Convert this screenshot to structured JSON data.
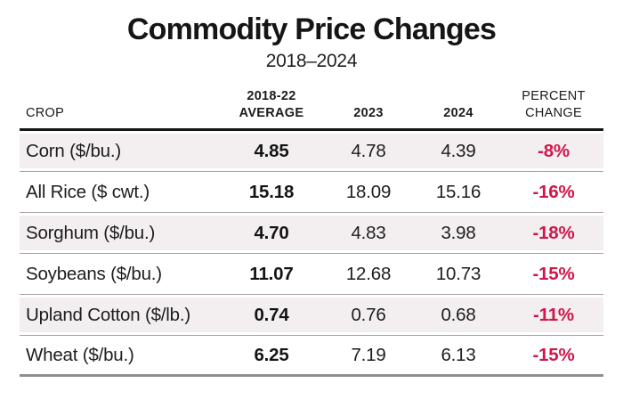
{
  "title": "Commodity Price Changes",
  "subtitle": "2018–2024",
  "colors": {
    "accent_red": "#d0164a",
    "row_tint": "#f3eff0",
    "header_rule": "#161616",
    "separator": "#a8a3a5",
    "bottom_rule": "#8f8f8f"
  },
  "table": {
    "headers": {
      "crop": "CROP",
      "avg_line1": "2018-22",
      "avg_line2": "AVERAGE",
      "y2023": "2023",
      "y2024": "2024",
      "pct_line1": "PERCENT",
      "pct_line2": "CHANGE"
    },
    "rows": [
      {
        "crop": "Corn ($/bu.)",
        "avg": "4.85",
        "y2023": "4.78",
        "y2024": "4.39",
        "pct": "-8%"
      },
      {
        "crop": "All Rice ($ cwt.)",
        "avg": "15.18",
        "y2023": "18.09",
        "y2024": "15.16",
        "pct": "-16%"
      },
      {
        "crop": "Sorghum ($/bu.)",
        "avg": "4.70",
        "y2023": "4.83",
        "y2024": "3.98",
        "pct": "-18%"
      },
      {
        "crop": "Soybeans ($/bu.)",
        "avg": "11.07",
        "y2023": "12.68",
        "y2024": "10.73",
        "pct": "-15%"
      },
      {
        "crop": "Upland Cotton ($/lb.)",
        "avg": "0.74",
        "y2023": "0.76",
        "y2024": "0.68",
        "pct": "-11%"
      },
      {
        "crop": "Wheat ($/bu.)",
        "avg": "6.25",
        "y2023": "7.19",
        "y2024": "6.13",
        "pct": "-15%"
      }
    ]
  },
  "chart_data": {
    "type": "table",
    "title": "Commodity Price Changes",
    "subtitle": "2018–2024",
    "columns": [
      "Crop",
      "2018-22 Average",
      "2023",
      "2024",
      "Percent Change"
    ],
    "rows": [
      [
        "Corn ($/bu.)",
        4.85,
        4.78,
        4.39,
        "-8%"
      ],
      [
        "All Rice ($ cwt.)",
        15.18,
        18.09,
        15.16,
        "-16%"
      ],
      [
        "Sorghum ($/bu.)",
        4.7,
        4.83,
        3.98,
        "-18%"
      ],
      [
        "Soybeans ($/bu.)",
        11.07,
        12.68,
        10.73,
        "-15%"
      ],
      [
        "Upland Cotton ($/lb.)",
        0.74,
        0.76,
        0.68,
        "-11%"
      ],
      [
        "Wheat ($/bu.)",
        6.25,
        7.19,
        6.13,
        "-15%"
      ]
    ],
    "notes": {
      "bold_columns": [
        "2018-22 Average",
        "Percent Change"
      ],
      "percent_change_color": "#d0164a",
      "row_striping": "odd rows tinted #f3eff0, even rows white"
    }
  }
}
